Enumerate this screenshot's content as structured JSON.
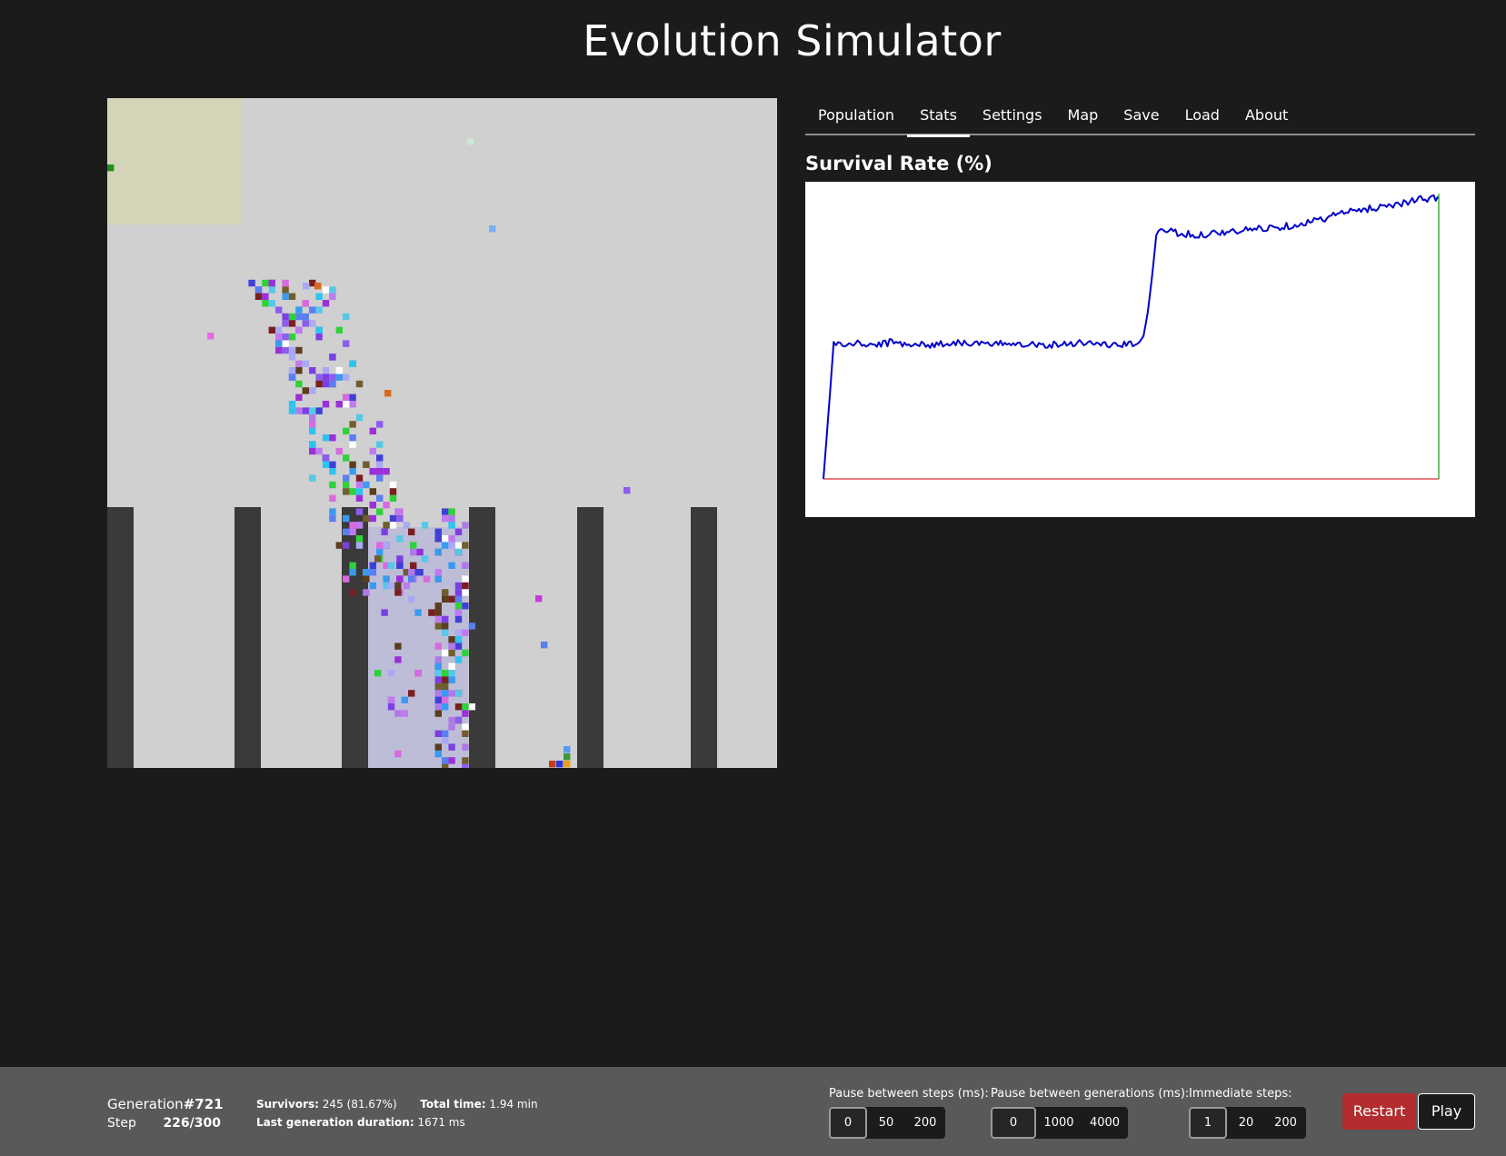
{
  "app": {
    "title": "Evolution Simulator"
  },
  "tabs": [
    {
      "label": "Population",
      "active": false
    },
    {
      "label": "Stats",
      "active": true
    },
    {
      "label": "Settings",
      "active": false
    },
    {
      "label": "Map",
      "active": false
    },
    {
      "label": "Save",
      "active": false
    },
    {
      "label": "Load",
      "active": false
    },
    {
      "label": "About",
      "active": false
    }
  ],
  "stats": {
    "title": "Survival Rate (%)"
  },
  "world": {
    "background_color": "#d0d0d0",
    "wall_color": "#3a3a3a",
    "spawn_zone_color": "#d4d4b8",
    "safe_zone_color": "#bdbdd8"
  },
  "chart_data": {
    "type": "line",
    "title": "Survival Rate (%)",
    "xlabel": "",
    "ylabel": "",
    "xlim": [
      0,
      721
    ],
    "ylim": [
      0,
      100
    ],
    "grid": false,
    "series": [
      {
        "color": "#0000cc",
        "x": [
          0,
          8,
          12,
          20,
          40,
          60,
          80,
          100,
          120,
          140,
          160,
          180,
          200,
          220,
          240,
          260,
          280,
          300,
          320,
          340,
          360,
          370,
          375,
          380,
          385,
          390,
          400,
          420,
          440,
          460,
          480,
          500,
          520,
          540,
          560,
          580,
          600,
          620,
          640,
          660,
          680,
          700,
          710,
          720
        ],
        "y": [
          0,
          30,
          46,
          45,
          45.5,
          45,
          46,
          45.5,
          45,
          45.5,
          46,
          45.5,
          45,
          46,
          45.5,
          45,
          45.5,
          46,
          45.5,
          45,
          45.3,
          46,
          48,
          56,
          68,
          82,
          84,
          82.5,
          82,
          83,
          83,
          84,
          84.5,
          85,
          86,
          87,
          89,
          90,
          91,
          92,
          93,
          94,
          94,
          95
        ]
      }
    ],
    "baseline_color": "#e05050",
    "marker_color": "#3cb043"
  },
  "footer": {
    "generation_label": "Generation",
    "generation_value": "#721",
    "step_label": "Step",
    "step_value": "226/300",
    "survivors_label": "Survivors:",
    "survivors_value": "245 (81.67%)",
    "total_time_label": "Total time:",
    "total_time_value": "1.94 min",
    "last_gen_label": "Last generation duration:",
    "last_gen_value": "1671 ms",
    "pause_steps": {
      "label": "Pause between steps (ms):",
      "options": [
        "0",
        "50",
        "200"
      ],
      "selected": "0"
    },
    "pause_generations": {
      "label": "Pause between generations (ms):",
      "options": [
        "0",
        "1000",
        "4000"
      ],
      "selected": "0"
    },
    "immediate_steps": {
      "label": "Immediate steps:",
      "options": [
        "1",
        "20",
        "200"
      ],
      "selected": "1"
    },
    "restart_label": "Restart",
    "play_label": "Play",
    "restart_color": "#b32d2e"
  }
}
